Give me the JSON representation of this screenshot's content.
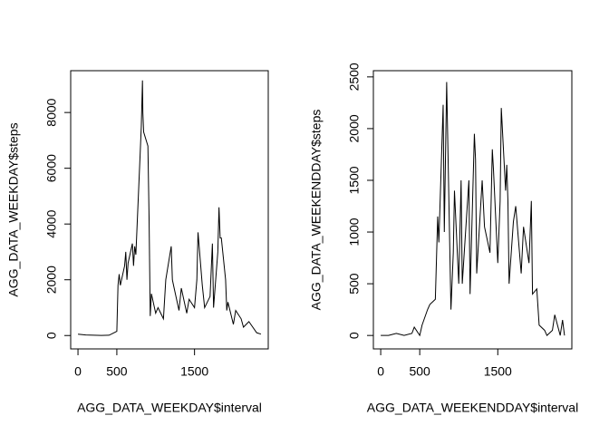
{
  "chart_data": [
    {
      "type": "line",
      "xlabel": "AGG_DATA_WEEKDAY$interval",
      "ylabel": "AGG_DATA_WEEKDAY$steps",
      "x": [
        0,
        100,
        200,
        300,
        400,
        500,
        515,
        530,
        545,
        600,
        615,
        630,
        645,
        700,
        715,
        730,
        745,
        800,
        815,
        830,
        835,
        845,
        900,
        915,
        930,
        945,
        1000,
        1030,
        1100,
        1130,
        1200,
        1215,
        1230,
        1300,
        1330,
        1400,
        1430,
        1500,
        1530,
        1545,
        1600,
        1630,
        1700,
        1730,
        1745,
        1800,
        1815,
        1830,
        1845,
        1900,
        1915,
        1930,
        2000,
        2030,
        2100,
        2130,
        2200,
        2300,
        2355
      ],
      "series": [
        {
          "color": "#000000",
          "values": [
            50,
            20,
            10,
            5,
            10,
            150,
            1800,
            2200,
            1800,
            2500,
            3000,
            2000,
            2600,
            3300,
            2500,
            3200,
            2900,
            6500,
            7500,
            9150,
            8000,
            7300,
            6800,
            4200,
            700,
            1500,
            800,
            1000,
            600,
            2000,
            3200,
            2000,
            1800,
            900,
            1700,
            800,
            1300,
            1000,
            2000,
            3700,
            1800,
            1000,
            1400,
            3300,
            1000,
            3000,
            4600,
            3500,
            3500,
            2000,
            900,
            1200,
            400,
            900,
            600,
            300,
            500,
            100,
            50
          ]
        }
      ],
      "xlim": [
        -94,
        2449
      ],
      "ylim": [
        -480,
        9500
      ],
      "xticks": [
        0,
        500,
        1500
      ],
      "yticks": [
        0,
        2000,
        4000,
        6000,
        8000
      ]
    },
    {
      "type": "line",
      "xlabel": "AGG_DATA_WEEKENDDAY$interval",
      "ylabel": "AGG_DATA_WEEKENDDAY$steps",
      "x": [
        0,
        100,
        200,
        300,
        400,
        430,
        500,
        530,
        600,
        630,
        700,
        730,
        745,
        800,
        815,
        845,
        900,
        930,
        945,
        1000,
        1030,
        1045,
        1100,
        1130,
        1145,
        1200,
        1215,
        1230,
        1300,
        1330,
        1400,
        1430,
        1445,
        1500,
        1530,
        1545,
        1600,
        1615,
        1630,
        1645,
        1700,
        1730,
        1800,
        1830,
        1900,
        1930,
        1945,
        2000,
        2030,
        2100,
        2130,
        2200,
        2230,
        2300,
        2330,
        2355
      ],
      "series": [
        {
          "color": "#000000",
          "values": [
            0,
            0,
            20,
            0,
            20,
            80,
            0,
            100,
            250,
            300,
            350,
            1150,
            900,
            2230,
            1000,
            2450,
            250,
            800,
            1400,
            500,
            1500,
            500,
            1150,
            1500,
            400,
            1950,
            1700,
            600,
            1500,
            1050,
            800,
            1800,
            1600,
            700,
            1300,
            2200,
            1400,
            1650,
            1300,
            500,
            1100,
            1250,
            600,
            1050,
            700,
            1300,
            400,
            450,
            100,
            50,
            0,
            50,
            200,
            0,
            150,
            0
          ]
        }
      ],
      "xlim": [
        -94,
        2449
      ],
      "ylim": [
        -130,
        2560
      ],
      "xticks": [
        0,
        500,
        1500
      ],
      "yticks": [
        0,
        500,
        1000,
        1500,
        2000,
        2500
      ]
    }
  ]
}
